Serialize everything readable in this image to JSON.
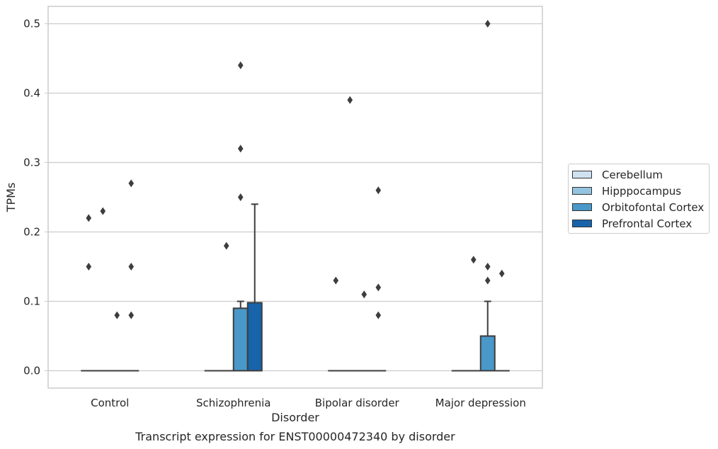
{
  "chart_data": {
    "type": "box",
    "title": "Transcript expression for ENST00000472340 by disorder",
    "xlabel": "Disorder",
    "ylabel": "TPMs",
    "ylim": [
      -0.025,
      0.525
    ],
    "yticks": [
      0.0,
      0.1,
      0.2,
      0.3,
      0.4,
      0.5
    ],
    "ytick_labels": [
      "0.0",
      "0.1",
      "0.2",
      "0.3",
      "0.4",
      "0.5"
    ],
    "categories": [
      "Control",
      "Schizophrenia",
      "Bipolar disorder",
      "Major depression"
    ],
    "grid": "horizontal",
    "legend_position": "right",
    "series": [
      {
        "name": "Cerebellum",
        "color": "#d0e1f2",
        "boxes": [
          {
            "min": 0,
            "q1": 0,
            "median": 0,
            "q3": 0,
            "max": 0,
            "outliers": [
              0.15,
              0.22
            ]
          },
          {
            "min": 0,
            "q1": 0,
            "median": 0,
            "q3": 0,
            "max": 0,
            "outliers": []
          },
          {
            "min": 0,
            "q1": 0,
            "median": 0,
            "q3": 0,
            "max": 0,
            "outliers": [
              0.13
            ]
          },
          {
            "min": 0,
            "q1": 0,
            "median": 0,
            "q3": 0,
            "max": 0,
            "outliers": []
          }
        ]
      },
      {
        "name": "Hipppocampus",
        "color": "#94c4df",
        "boxes": [
          {
            "min": 0,
            "q1": 0,
            "median": 0,
            "q3": 0,
            "max": 0,
            "outliers": [
              0.23
            ]
          },
          {
            "min": 0,
            "q1": 0,
            "median": 0,
            "q3": 0,
            "max": 0,
            "outliers": [
              0.18
            ]
          },
          {
            "min": 0,
            "q1": 0,
            "median": 0,
            "q3": 0,
            "max": 0,
            "outliers": [
              0.39
            ]
          },
          {
            "min": 0,
            "q1": 0,
            "median": 0,
            "q3": 0,
            "max": 0,
            "outliers": [
              0.16
            ]
          }
        ]
      },
      {
        "name": "Orbitofontal Cortex",
        "color": "#4a98c9",
        "boxes": [
          {
            "min": 0,
            "q1": 0,
            "median": 0,
            "q3": 0,
            "max": 0,
            "outliers": [
              0.08
            ]
          },
          {
            "min": 0,
            "q1": 0,
            "median": 0,
            "q3": 0.09,
            "max": 0.1,
            "outliers": [
              0.25,
              0.32,
              0.44
            ]
          },
          {
            "min": 0,
            "q1": 0,
            "median": 0,
            "q3": 0,
            "max": 0,
            "outliers": [
              0.11
            ]
          },
          {
            "min": 0,
            "q1": 0,
            "median": 0,
            "q3": 0.05,
            "max": 0.1,
            "outliers": [
              0.13,
              0.15,
              0.5
            ]
          }
        ]
      },
      {
        "name": "Prefrontal Cortex",
        "color": "#1764ab",
        "boxes": [
          {
            "min": 0,
            "q1": 0,
            "median": 0,
            "q3": 0,
            "max": 0,
            "outliers": [
              0.08,
              0.15,
              0.27
            ]
          },
          {
            "min": 0,
            "q1": 0,
            "median": 0,
            "q3": 0.098,
            "max": 0.24,
            "outliers": []
          },
          {
            "min": 0,
            "q1": 0,
            "median": 0,
            "q3": 0,
            "max": 0,
            "outliers": [
              0.08,
              0.12,
              0.26
            ]
          },
          {
            "min": 0,
            "q1": 0,
            "median": 0,
            "q3": 0,
            "max": 0,
            "outliers": [
              0.14
            ]
          }
        ]
      }
    ]
  }
}
